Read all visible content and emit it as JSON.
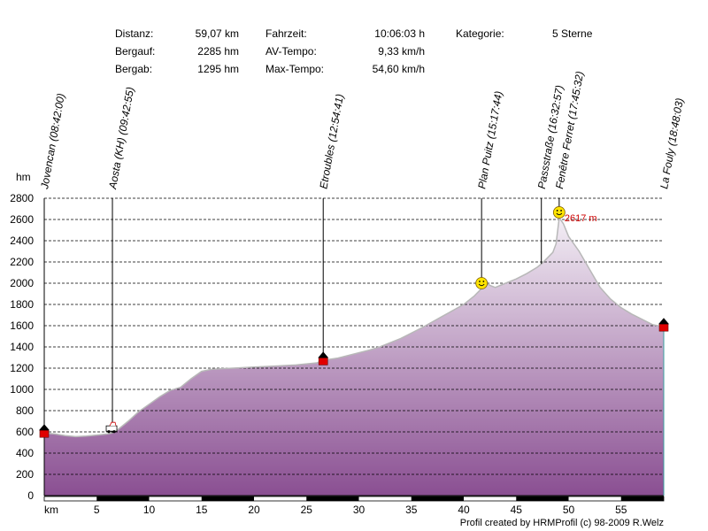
{
  "summary": {
    "distanz_label": "Distanz:",
    "distanz_value": "59,07 km",
    "bergauf_label": "Bergauf:",
    "bergauf_value": "2285 hm",
    "bergab_label": "Bergab:",
    "bergab_value": "1295 hm",
    "fahrzeit_label": "Fahrzeit:",
    "fahrzeit_value": "10:06:03 h",
    "avtempo_label": "AV-Tempo:",
    "avtempo_value": "9,33 km/h",
    "maxtempo_label": "Max-Tempo:",
    "maxtempo_value": "54,60 km/h",
    "kategorie_label": "Kategorie:",
    "kategorie_value": "5 Sterne"
  },
  "credit": "Profil created by HRMProfil (c) 98-2009 R.Welz",
  "colors": {
    "fill_top": "#f3eef5",
    "fill_bottom": "#8a4f92",
    "line": "#b8b8b8",
    "peak_label": "#cc0000"
  },
  "chart_data": {
    "type": "area",
    "title": "",
    "xlabel": "km",
    "ylabel": "hm",
    "xlim": [
      0,
      59.07
    ],
    "ylim": [
      0,
      2800
    ],
    "x_ticks": [
      5,
      10,
      15,
      20,
      25,
      30,
      35,
      40,
      45,
      50,
      55
    ],
    "y_ticks": [
      0,
      200,
      400,
      600,
      800,
      1000,
      1200,
      1400,
      1600,
      1800,
      2000,
      2200,
      2400,
      2600,
      2800
    ],
    "grid": true,
    "x": [
      0,
      1,
      2,
      3,
      4,
      5,
      6,
      6.5,
      7,
      8,
      9,
      10,
      11,
      12,
      13,
      14,
      15,
      16,
      18,
      20,
      22,
      24,
      26,
      26.5,
      27,
      28,
      29,
      30,
      31,
      32,
      34,
      36,
      38,
      40,
      41,
      41.7,
      42,
      42.5,
      43,
      44,
      45,
      46,
      47,
      47.5,
      48,
      48.5,
      48.8,
      49.1,
      49.5,
      50,
      51,
      52,
      53,
      54,
      55,
      56,
      57,
      58,
      59.07
    ],
    "y": [
      590,
      580,
      565,
      555,
      560,
      570,
      580,
      590,
      620,
      700,
      790,
      860,
      930,
      990,
      1020,
      1100,
      1170,
      1190,
      1200,
      1210,
      1220,
      1230,
      1250,
      1270,
      1280,
      1295,
      1320,
      1345,
      1370,
      1400,
      1480,
      1580,
      1690,
      1800,
      1880,
      1950,
      2010,
      1980,
      1960,
      2000,
      2040,
      2090,
      2150,
      2190,
      2240,
      2290,
      2370,
      2617,
      2560,
      2440,
      2300,
      2130,
      1960,
      1850,
      1770,
      1710,
      1660,
      1610,
      1590
    ],
    "waypoints": [
      {
        "label": "Jovencan (08:42:00)",
        "km": 0,
        "marker": "flag"
      },
      {
        "label": "Aosta (KH) (09:42:55)",
        "km": 6.5,
        "marker": "car"
      },
      {
        "label": "Etroubles (12:54:41)",
        "km": 26.6,
        "marker": "flag"
      },
      {
        "label": "Plan Puitz (15:17:44)",
        "km": 41.7,
        "marker": "smiley"
      },
      {
        "label": "Passstraße (16:32:57)",
        "km": 47.4,
        "marker": "none"
      },
      {
        "label": "Fenêtre Ferret (17:45:32)",
        "km": 49.1,
        "marker": "smiley"
      },
      {
        "label": "La Fouly (18:48:03)",
        "km": 59.07,
        "marker": "flag"
      }
    ],
    "peak_label": "2617 m",
    "peak_km": 49.1,
    "peak_elevation": 2617
  }
}
